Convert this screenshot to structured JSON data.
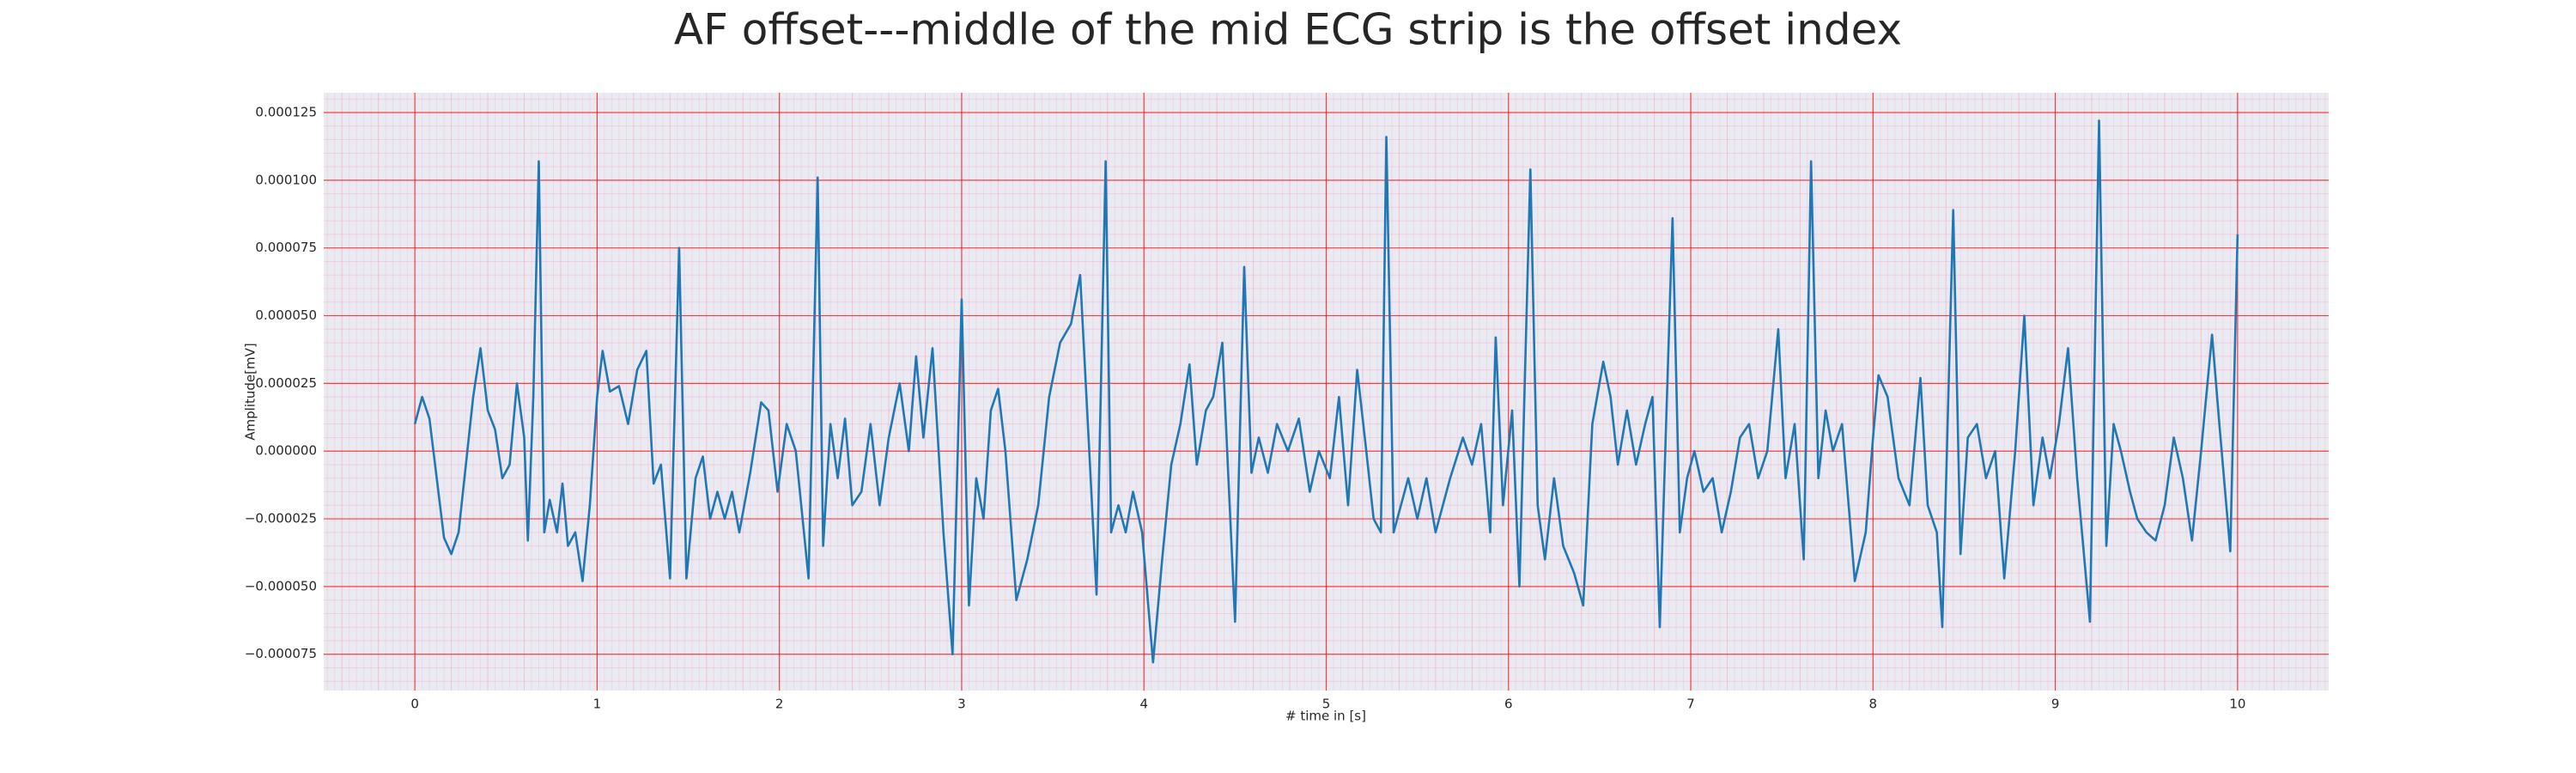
{
  "chart_data": {
    "type": "line",
    "title": "AF offset---middle of the mid ECG strip is the offset index",
    "xlabel": "# time in [s]",
    "ylabel": "Amplitude[mV]",
    "xlim": [
      -0.5,
      10.5
    ],
    "ylim": [
      -8.84e-05,
      0.0001323
    ],
    "xticks": [
      0,
      1,
      2,
      3,
      4,
      5,
      6,
      7,
      8,
      9,
      10
    ],
    "yticks": [
      {
        "value": -7.5e-05,
        "label": "−0.000075"
      },
      {
        "value": -5e-05,
        "label": "−0.000050"
      },
      {
        "value": -2.5e-05,
        "label": "−0.000025"
      },
      {
        "value": 0,
        "label": "0.000000"
      },
      {
        "value": 2.5e-05,
        "label": "0.000025"
      },
      {
        "value": 5e-05,
        "label": "0.000050"
      },
      {
        "value": 7.5e-05,
        "label": "0.000075"
      },
      {
        "value": 0.0001,
        "label": "0.000100"
      },
      {
        "value": 0.000125,
        "label": "0.000125"
      }
    ],
    "grid": true,
    "grid_color": "#ff0000",
    "background": "#eaeaf2",
    "series": [
      {
        "color": "#1f77b4",
        "x": [
          0.0,
          0.04,
          0.08,
          0.12,
          0.16,
          0.2,
          0.24,
          0.28,
          0.32,
          0.36,
          0.4,
          0.44,
          0.48,
          0.52,
          0.56,
          0.6,
          0.62,
          0.65,
          0.68,
          0.71,
          0.74,
          0.78,
          0.81,
          0.84,
          0.88,
          0.92,
          0.96,
          1.0,
          1.03,
          1.07,
          1.12,
          1.17,
          1.22,
          1.27,
          1.31,
          1.35,
          1.4,
          1.45,
          1.49,
          1.54,
          1.58,
          1.62,
          1.66,
          1.7,
          1.74,
          1.78,
          1.84,
          1.9,
          1.94,
          1.99,
          2.04,
          2.09,
          2.16,
          2.21,
          2.24,
          2.28,
          2.32,
          2.36,
          2.4,
          2.45,
          2.5,
          2.55,
          2.6,
          2.66,
          2.71,
          2.75,
          2.79,
          2.84,
          2.9,
          2.95,
          3.0,
          3.04,
          3.08,
          3.12,
          3.16,
          3.2,
          3.24,
          3.3,
          3.36,
          3.42,
          3.48,
          3.54,
          3.6,
          3.65,
          3.7,
          3.74,
          3.79,
          3.82,
          3.86,
          3.9,
          3.94,
          3.99,
          4.05,
          4.1,
          4.15,
          4.2,
          4.25,
          4.29,
          4.34,
          4.38,
          4.43,
          4.46,
          4.5,
          4.55,
          4.59,
          4.63,
          4.68,
          4.73,
          4.79,
          4.85,
          4.91,
          4.96,
          5.02,
          5.07,
          5.12,
          5.17,
          5.22,
          5.26,
          5.3,
          5.33,
          5.37,
          5.41,
          5.45,
          5.5,
          5.55,
          5.6,
          5.68,
          5.75,
          5.8,
          5.85,
          5.9,
          5.93,
          5.97,
          6.02,
          6.06,
          6.12,
          6.16,
          6.2,
          6.25,
          6.3,
          6.36,
          6.41,
          6.46,
          6.52,
          6.56,
          6.6,
          6.65,
          6.7,
          6.75,
          6.79,
          6.83,
          6.9,
          6.94,
          6.98,
          7.02,
          7.07,
          7.12,
          7.17,
          7.22,
          7.27,
          7.32,
          7.37,
          7.42,
          7.48,
          7.52,
          7.57,
          7.62,
          7.66,
          7.7,
          7.74,
          7.78,
          7.83,
          7.9,
          7.96,
          8.0,
          8.03,
          8.08,
          8.14,
          8.2,
          8.26,
          8.3,
          8.35,
          8.38,
          8.44,
          8.48,
          8.52,
          8.57,
          8.62,
          8.67,
          8.72,
          8.78,
          8.83,
          8.88,
          8.93,
          8.97,
          9.02,
          9.07,
          9.12,
          9.19,
          9.24,
          9.28,
          9.32,
          9.36,
          9.41,
          9.45,
          9.5,
          9.55,
          9.6,
          9.65,
          9.7,
          9.75,
          9.8,
          9.86,
          9.9,
          9.96,
          10.0
        ],
        "values": [
          1e-05,
          2e-05,
          1.2e-05,
          -1e-05,
          -3.2e-05,
          -3.8e-05,
          -3e-05,
          -5e-06,
          2e-05,
          3.8e-05,
          1.5e-05,
          8e-06,
          -1e-05,
          -5e-06,
          2.5e-05,
          5e-06,
          -3.3e-05,
          2e-05,
          0.000107,
          -3e-05,
          -1.8e-05,
          -3e-05,
          -1.2e-05,
          -3.5e-05,
          -3e-05,
          -4.8e-05,
          -2e-05,
          2e-05,
          3.7e-05,
          2.2e-05,
          2.4e-05,
          1e-05,
          3e-05,
          3.7e-05,
          -1.2e-05,
          -5e-06,
          -4.7e-05,
          7.5e-05,
          -4.7e-05,
          -1e-05,
          -2e-06,
          -2.5e-05,
          -1.5e-05,
          -2.5e-05,
          -1.5e-05,
          -3e-05,
          -8e-06,
          1.8e-05,
          1.5e-05,
          -1.5e-05,
          1e-05,
          0,
          -4.7e-05,
          0.000101,
          -3.5e-05,
          1e-05,
          -1e-05,
          1.2e-05,
          -2e-05,
          -1.5e-05,
          1e-05,
          -2e-05,
          5e-06,
          2.5e-05,
          0,
          3.5e-05,
          5e-06,
          3.8e-05,
          -3e-05,
          -7.5e-05,
          5.6e-05,
          -5.7e-05,
          -1e-05,
          -2.5e-05,
          1.5e-05,
          2.3e-05,
          0,
          -5.5e-05,
          -4e-05,
          -2e-05,
          2e-05,
          4e-05,
          4.7e-05,
          6.5e-05,
          0,
          -5.3e-05,
          0.000107,
          -3e-05,
          -2e-05,
          -3e-05,
          -1.5e-05,
          -3e-05,
          -7.8e-05,
          -4e-05,
          -5e-06,
          1e-05,
          3.2e-05,
          -5e-06,
          1.5e-05,
          2e-05,
          4e-05,
          -5e-06,
          -6.3e-05,
          6.8e-05,
          -8e-06,
          5e-06,
          -8e-06,
          1e-05,
          0,
          1.2e-05,
          -1.5e-05,
          0,
          -1e-05,
          2e-05,
          -2e-05,
          3e-05,
          0,
          -2.5e-05,
          -3e-05,
          0.000116,
          -3e-05,
          -2e-05,
          -1e-05,
          -2.5e-05,
          -1e-05,
          -3e-05,
          -1e-05,
          5e-06,
          -5e-06,
          1e-05,
          -3e-05,
          4.2e-05,
          -2e-05,
          1.5e-05,
          -5e-05,
          0.000104,
          -2e-05,
          -4e-05,
          -1e-05,
          -3.5e-05,
          -4.5e-05,
          -5.7e-05,
          1e-05,
          3.3e-05,
          2e-05,
          -5e-06,
          1.5e-05,
          -5e-06,
          1e-05,
          2e-05,
          -6.5e-05,
          8.6e-05,
          -3e-05,
          -1e-05,
          0,
          -1.5e-05,
          -1e-05,
          -3e-05,
          -1.5e-05,
          5e-06,
          1e-05,
          -1e-05,
          0,
          4.5e-05,
          -1e-05,
          1e-05,
          -4e-05,
          0.000107,
          -1e-05,
          1.5e-05,
          0,
          1e-05,
          -4.8e-05,
          -3e-05,
          5e-06,
          2.8e-05,
          2e-05,
          -1e-05,
          -2e-05,
          2.7e-05,
          -2e-05,
          -3e-05,
          -6.5e-05,
          8.9e-05,
          -3.8e-05,
          5e-06,
          1e-05,
          -1e-05,
          0,
          -4.7e-05,
          0,
          5e-05,
          -2e-05,
          5e-06,
          -1e-05,
          1e-05,
          3.8e-05,
          -1e-05,
          -6.3e-05,
          0.000122,
          -3.5e-05,
          1e-05,
          0,
          -1.5e-05,
          -2.5e-05,
          -3e-05,
          -3.3e-05,
          -2e-05,
          5e-06,
          -1e-05,
          -3.3e-05,
          0,
          4.3e-05,
          1e-05,
          -3.7e-05,
          8e-05
        ]
      }
    ]
  }
}
